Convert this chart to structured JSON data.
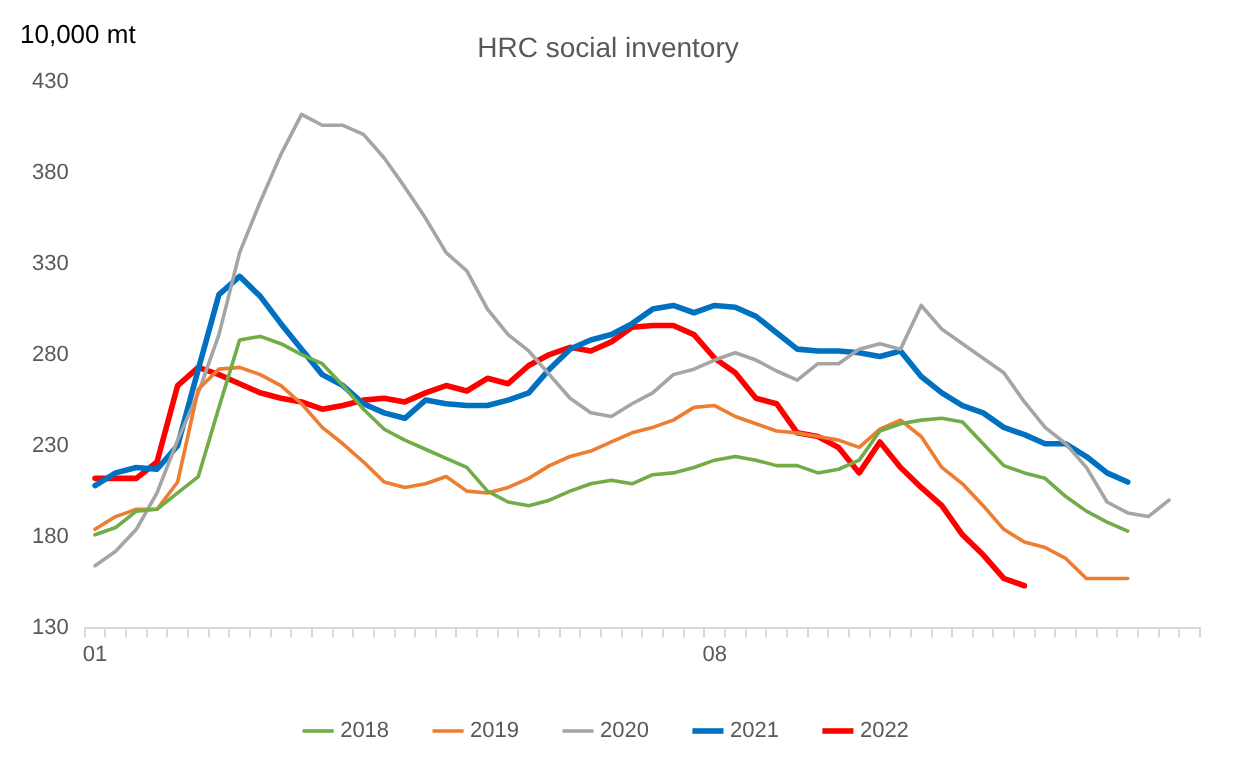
{
  "chart_data": {
    "type": "line",
    "title": "HRC social inventory",
    "ylabel": "10,000 mt",
    "categories": [
      "01",
      null,
      null,
      null,
      null,
      null,
      null,
      null,
      null,
      null,
      null,
      null,
      null,
      null,
      null,
      null,
      null,
      null,
      null,
      null,
      null,
      null,
      null,
      null,
      null,
      null,
      null,
      null,
      null,
      null,
      "08",
      null,
      null,
      null,
      null,
      null,
      null,
      null,
      null,
      null,
      null,
      null,
      null,
      null,
      null,
      null,
      null,
      null,
      null,
      null,
      null,
      null,
      null,
      null
    ],
    "series": [
      {
        "name": "2018",
        "color": "#70ad47",
        "values": [
          181,
          185,
          194,
          195,
          204,
          213,
          251,
          288,
          290,
          286,
          280,
          275,
          263,
          250,
          239,
          233,
          228,
          223,
          218,
          205,
          199,
          197,
          200,
          205,
          209,
          211,
          209,
          214,
          215,
          218,
          222,
          224,
          222,
          219,
          219,
          215,
          217,
          222,
          238,
          242,
          244,
          245,
          243,
          231,
          219,
          215,
          212,
          202,
          194,
          188,
          183,
          null,
          null,
          null
        ]
      },
      {
        "name": "2019",
        "color": "#ed7d31",
        "values": [
          184,
          191,
          195,
          195,
          210,
          261,
          272,
          273,
          269,
          263,
          253,
          240,
          231,
          221,
          210,
          207,
          209,
          213,
          205,
          204,
          207,
          212,
          219,
          224,
          227,
          232,
          237,
          240,
          244,
          251,
          252,
          246,
          242,
          238,
          237,
          235,
          233,
          229,
          239,
          244,
          235,
          218,
          209,
          197,
          184,
          177,
          174,
          168,
          157,
          157,
          157,
          null,
          null,
          null
        ]
      },
      {
        "name": "2020",
        "color": "#a5a5a5",
        "values": [
          164,
          172,
          184,
          204,
          233,
          259,
          291,
          336,
          364,
          390,
          412,
          406,
          406,
          401,
          388,
          372,
          355,
          336,
          326,
          305,
          291,
          282,
          269,
          256,
          248,
          246,
          253,
          259,
          269,
          272,
          277,
          281,
          277,
          271,
          266,
          275,
          275,
          283,
          286,
          283,
          307,
          294,
          286,
          278,
          270,
          254,
          240,
          231,
          218,
          199,
          193,
          191,
          200,
          null
        ]
      },
      {
        "name": "2021",
        "color": "#0070c0",
        "values": [
          208,
          215,
          218,
          217,
          230,
          272,
          313,
          323,
          312,
          297,
          283,
          269,
          263,
          253,
          248,
          245,
          255,
          253,
          252,
          252,
          255,
          259,
          272,
          283,
          288,
          291,
          297,
          305,
          307,
          303,
          307,
          306,
          301,
          292,
          283,
          282,
          282,
          281,
          279,
          282,
          268,
          259,
          252,
          248,
          240,
          236,
          231,
          231,
          224,
          215,
          210,
          null,
          null,
          null
        ]
      },
      {
        "name": "2022",
        "color": "#ff0000",
        "values": [
          212,
          212,
          212,
          221,
          263,
          273,
          269,
          264,
          259,
          256,
          254,
          250,
          252,
          255,
          256,
          254,
          259,
          263,
          260,
          267,
          264,
          274,
          280,
          284,
          282,
          287,
          295,
          296,
          296,
          291,
          278,
          270,
          256,
          253,
          237,
          235,
          229,
          215,
          232,
          218,
          207,
          197,
          181,
          170,
          157,
          153,
          null,
          null,
          null,
          null,
          null,
          null,
          null,
          null
        ]
      }
    ],
    "ylim": [
      130,
      430
    ],
    "yticks": [
      130,
      180,
      230,
      280,
      330,
      380,
      430
    ],
    "grid": false,
    "legend": "bottom",
    "marker": "none",
    "line_style": "solid"
  }
}
